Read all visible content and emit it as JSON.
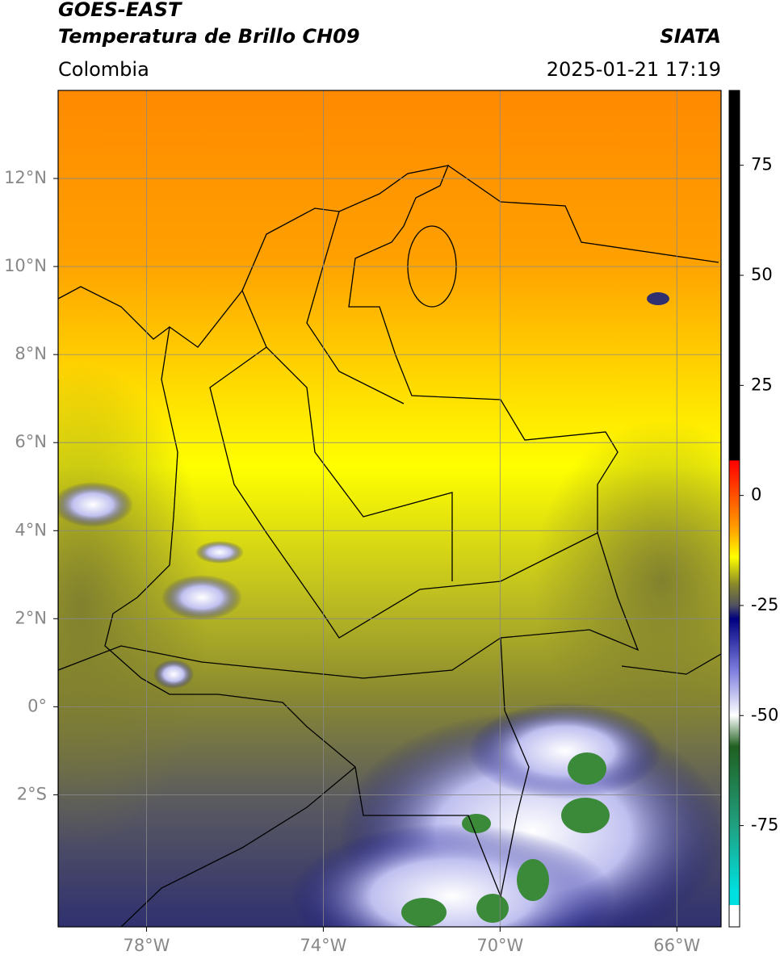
{
  "header": {
    "title": "GOES-EAST",
    "subtitle": "Temperatura de Brillo CH09",
    "source": "SIATA",
    "region": "Colombia",
    "timestamp": "2025-01-21 17:19"
  },
  "map": {
    "xlim": [
      -80,
      -65
    ],
    "ylim": [
      -5,
      14
    ],
    "grid": true,
    "xticks": [
      {
        "value": -78,
        "label": "78°W"
      },
      {
        "value": -74,
        "label": "74°W"
      },
      {
        "value": -70,
        "label": "70°W"
      },
      {
        "value": -66,
        "label": "66°W"
      }
    ],
    "yticks": [
      {
        "value": 12,
        "label": "12°N"
      },
      {
        "value": 10,
        "label": "10°N"
      },
      {
        "value": 8,
        "label": "8°N"
      },
      {
        "value": 6,
        "label": "6°N"
      },
      {
        "value": 4,
        "label": "4°N"
      },
      {
        "value": 2,
        "label": "2°N"
      },
      {
        "value": 0,
        "label": "0°"
      },
      {
        "value": -2,
        "label": "2°S"
      }
    ]
  },
  "colorbar": {
    "lim": [
      -98,
      92
    ],
    "ticks": [
      75,
      50,
      25,
      0,
      -25,
      -50,
      -75
    ],
    "stops": [
      {
        "value": 92,
        "color": "#000000"
      },
      {
        "value": 8,
        "color": "#000000"
      },
      {
        "value": 7.9,
        "color": "#ff0000"
      },
      {
        "value": 0,
        "color": "#ff5000"
      },
      {
        "value": -8,
        "color": "#ffa500"
      },
      {
        "value": -14,
        "color": "#ffff00"
      },
      {
        "value": -20,
        "color": "#8c8c28"
      },
      {
        "value": -25,
        "color": "#505060"
      },
      {
        "value": -28,
        "color": "#000080"
      },
      {
        "value": -40,
        "color": "#8080e0"
      },
      {
        "value": -50,
        "color": "#ffffff"
      },
      {
        "value": -57,
        "color": "#206020"
      },
      {
        "value": -75,
        "color": "#20a080"
      },
      {
        "value": -90,
        "color": "#00e0e0"
      },
      {
        "value": -93,
        "color": "#00e0e0"
      },
      {
        "value": -93.1,
        "color": "#ffffff"
      },
      {
        "value": -98,
        "color": "#ffffff"
      }
    ]
  }
}
